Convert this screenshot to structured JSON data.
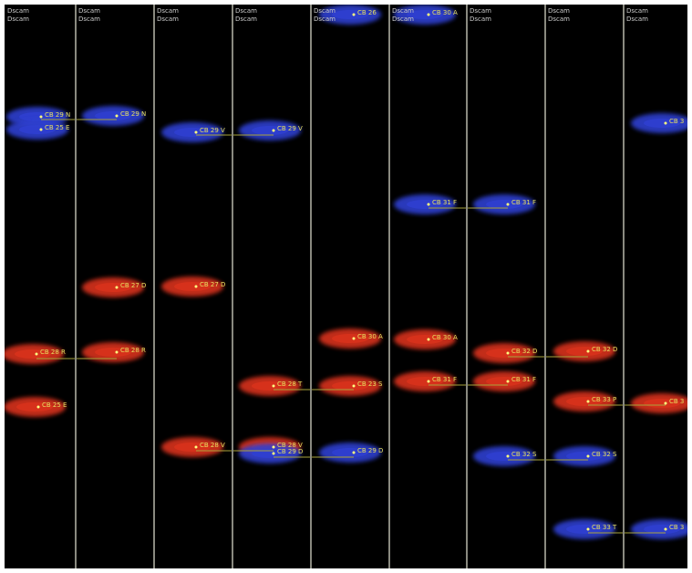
{
  "strips": [
    {
      "header": [
        "Dscam",
        "Dscam"
      ],
      "peaks": [
        {
          "label": "CB 29 N",
          "color": "#2f3fd0"
        },
        {
          "label": "CB 25 E",
          "color": "#2f3fd0"
        },
        {
          "label": "CB 28 R",
          "color": "#d8321c"
        },
        {
          "label": "CB 25 E",
          "color": "#d8321c"
        }
      ]
    },
    {
      "header": [
        "Dscam",
        "Dscam"
      ],
      "peaks": [
        {
          "label": "CB 29 N",
          "color": "#2f3fd0"
        },
        {
          "label": "CB 27 D",
          "color": "#d8321c"
        },
        {
          "label": "CB 28 R",
          "color": "#d8321c"
        }
      ]
    },
    {
      "header": [
        "Dscam",
        "Dscam"
      ],
      "peaks": [
        {
          "label": "CB 29 V",
          "color": "#2f3fd0"
        },
        {
          "label": "CB 27 D",
          "color": "#d8321c"
        },
        {
          "label": "CB 28 V",
          "color": "#d8321c"
        }
      ]
    },
    {
      "header": [
        "Dscam",
        "Dscam"
      ],
      "peaks": [
        {
          "label": "CB 29 V",
          "color": "#2f3fd0"
        },
        {
          "label": "CB 28 T",
          "color": "#d8321c"
        },
        {
          "label": "CB 28 V",
          "color": "#d8321c"
        },
        {
          "label": "CB 29 D",
          "color": "#2f3fd0"
        }
      ]
    },
    {
      "header": [
        "Dscam",
        "Dscam"
      ],
      "peaks": [
        {
          "label": "CB 26",
          "color": "#2f3fd0"
        },
        {
          "label": "CB 30 A",
          "color": "#d8321c"
        },
        {
          "label": "CB 23 S",
          "color": "#d8321c"
        },
        {
          "label": "CB 29 D",
          "color": "#2f3fd0"
        }
      ]
    },
    {
      "header": [
        "Dscam",
        "Dscam"
      ],
      "peaks": [
        {
          "label": "CB 30 A",
          "color": "#2f3fd0"
        },
        {
          "label": "CB 31 F",
          "color": "#2f3fd0"
        },
        {
          "label": "CB 30 A",
          "color": "#d8321c"
        },
        {
          "label": "CB 31 F",
          "color": "#d8321c"
        }
      ]
    },
    {
      "header": [
        "Dscam",
        "Dscam"
      ],
      "peaks": [
        {
          "label": "CB 31 F",
          "color": "#2f3fd0"
        },
        {
          "label": "CB 32 D",
          "color": "#d8321c"
        },
        {
          "label": "CB 31 F",
          "color": "#d8321c"
        },
        {
          "label": "CB 32 S",
          "color": "#2f3fd0"
        }
      ]
    },
    {
      "header": [
        "Dscam",
        "Dscam"
      ],
      "peaks": [
        {
          "label": "CB 32 D",
          "color": "#d8321c"
        },
        {
          "label": "CB 33 P",
          "color": "#d8321c"
        },
        {
          "label": "CB 32 S",
          "color": "#2f3fd0"
        },
        {
          "label": "CB 33 T",
          "color": "#2f3fd0"
        }
      ]
    },
    {
      "header": [
        "Dscam",
        "Dscam"
      ],
      "peaks": [
        {
          "label": "CB 3",
          "color": "#2f3fd0"
        },
        {
          "label": "CB 3",
          "color": "#d8321c"
        },
        {
          "label": "CB 3",
          "color": "#2f3fd0"
        }
      ]
    }
  ]
}
